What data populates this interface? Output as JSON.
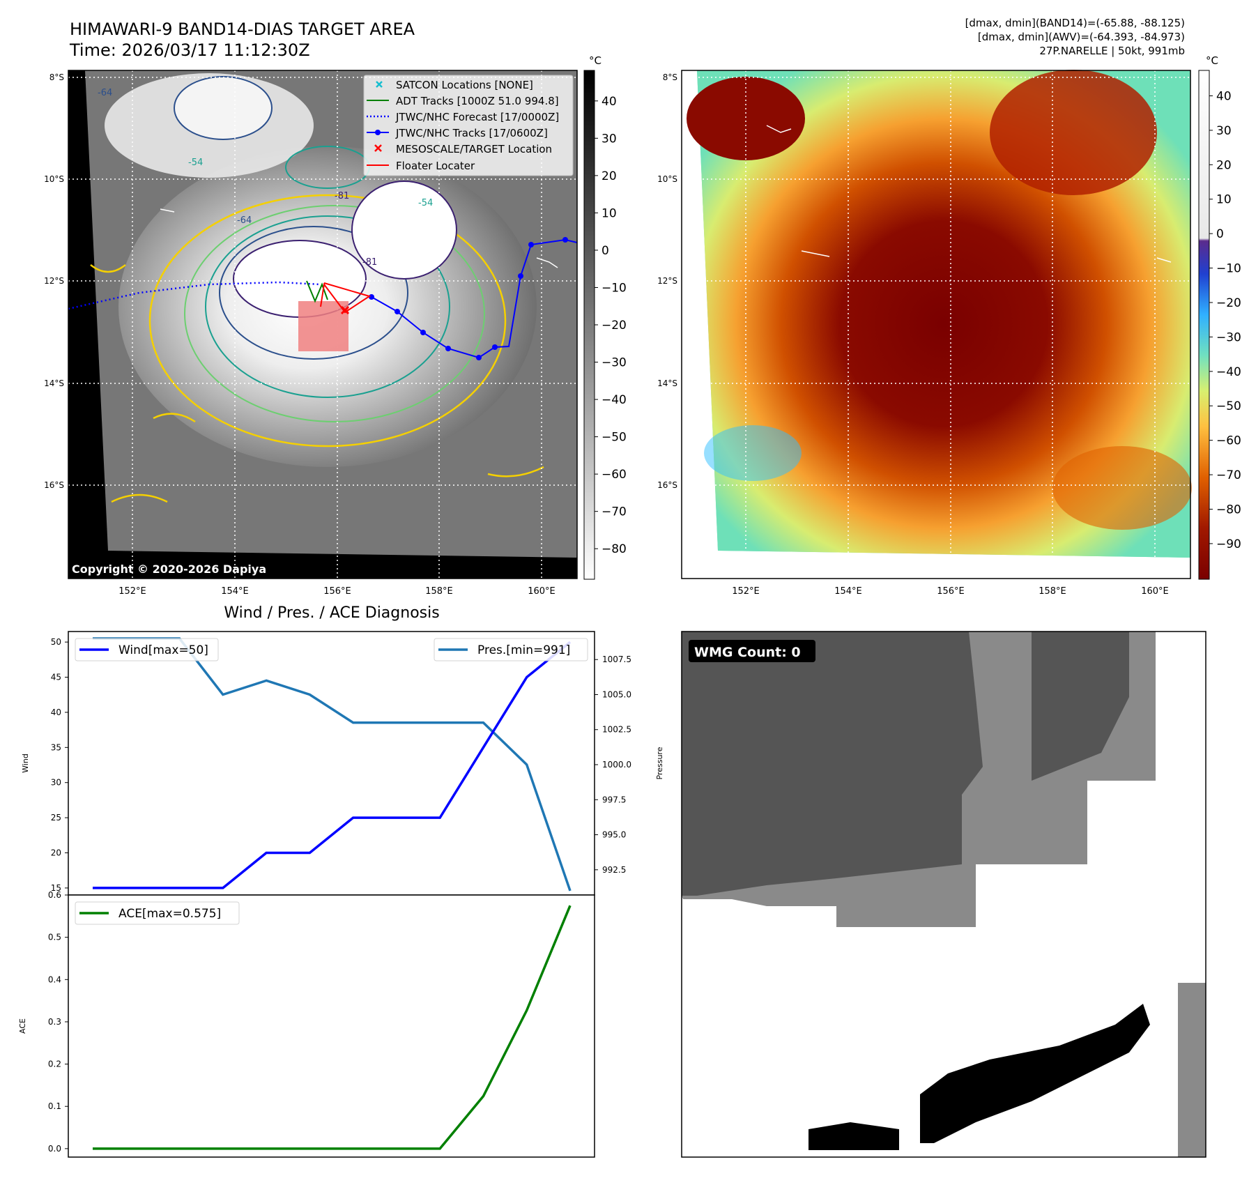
{
  "header": {
    "title_line1": "HIMAWARI-9 BAND14-DIAS TARGET AREA",
    "title_line2": "Time: 2026/03/17 11:12:30Z",
    "info_line1": "[dmax, dmin](BAND14)=(-65.88, -88.125)",
    "info_line2": "[dmax, dmin](AWV)=(-64.393, -84.973)",
    "info_line3": "27P.NARELLE | 50kt, 991mb"
  },
  "map": {
    "lat_labels": [
      "8°S",
      "10°S",
      "12°S",
      "14°S",
      "16°S"
    ],
    "lon_labels": [
      "152°E",
      "154°E",
      "156°E",
      "158°E",
      "160°E"
    ],
    "copyright": "Copyright © 2020-2026 Dapiya",
    "legend": [
      {
        "label": "SATCON Locations [NONE]",
        "symbol": "x",
        "color": "#17becf"
      },
      {
        "label": "ADT Tracks [1000Z 51.0 994.8]",
        "symbol": "line",
        "color": "#008000"
      },
      {
        "label": "JTWC/NHC Forecast [17/0000Z]",
        "symbol": "dotted",
        "color": "#0000ff"
      },
      {
        "label": "JTWC/NHC Tracks [17/0600Z]",
        "symbol": "line-dot",
        "color": "#0000ff"
      },
      {
        "label": "MESOSCALE/TARGET Location",
        "symbol": "x",
        "color": "#ff0000"
      },
      {
        "label": "Floater Locater",
        "symbol": "line",
        "color": "#ff0000"
      }
    ],
    "contour_labels": [
      "-64",
      "-54",
      "-81",
      "-64",
      "-54",
      "-81"
    ]
  },
  "colorbar_gray": {
    "unit": "°C",
    "ticks": [
      "40",
      "30",
      "20",
      "10",
      "0",
      "−10",
      "−20",
      "−30",
      "−40",
      "−50",
      "−60",
      "−70",
      "−80"
    ]
  },
  "colorbar_color": {
    "unit": "°C",
    "ticks": [
      "40",
      "30",
      "20",
      "10",
      "0",
      "−10",
      "−20",
      "−30",
      "−40",
      "−50",
      "−60",
      "−70",
      "−80",
      "−90"
    ]
  },
  "wmg": {
    "label": "WMG Count: 0"
  },
  "chart_data": [
    {
      "type": "line",
      "title": "Wind / Pres. / ACE Diagnosis",
      "ylabel": "Wind",
      "ylabel_right": "Pressure",
      "ylim": [
        14,
        51.5
      ],
      "ylim_right": [
        990.7,
        1009.5
      ],
      "x": [
        0,
        1,
        2,
        3,
        4,
        5,
        6,
        7,
        8,
        9,
        10,
        11
      ],
      "yticks": [
        15,
        20,
        25,
        30,
        35,
        40,
        45,
        50
      ],
      "yticks_right": [
        "992.5",
        "995.0",
        "997.5",
        "1000.0",
        "1002.5",
        "1005.0",
        "1007.5"
      ],
      "series": [
        {
          "name": "Wind[max=50]",
          "axis": "left",
          "color": "#0000ff",
          "values": [
            15,
            15,
            15,
            15,
            20,
            20,
            25,
            25,
            25,
            35,
            45,
            50
          ]
        },
        {
          "name": "Pres.[min=991]",
          "axis": "right",
          "color": "#1f77b4",
          "values": [
            1009,
            1009,
            1009,
            1005,
            1006,
            1005,
            1003,
            1003,
            1003,
            1003,
            1000,
            991
          ]
        }
      ]
    },
    {
      "type": "line",
      "ylabel": "ACE",
      "ylim": [
        -0.02,
        0.6
      ],
      "x": [
        0,
        1,
        2,
        3,
        4,
        5,
        6,
        7,
        8,
        9,
        10,
        11
      ],
      "yticks": [
        "0.0",
        "0.1",
        "0.2",
        "0.3",
        "0.4",
        "0.5",
        "0.6"
      ],
      "series": [
        {
          "name": "ACE[max=0.575]",
          "color": "#008000",
          "values": [
            0,
            0,
            0,
            0,
            0,
            0,
            0,
            0,
            0,
            0.124,
            0.327,
            0.575
          ]
        }
      ]
    }
  ]
}
